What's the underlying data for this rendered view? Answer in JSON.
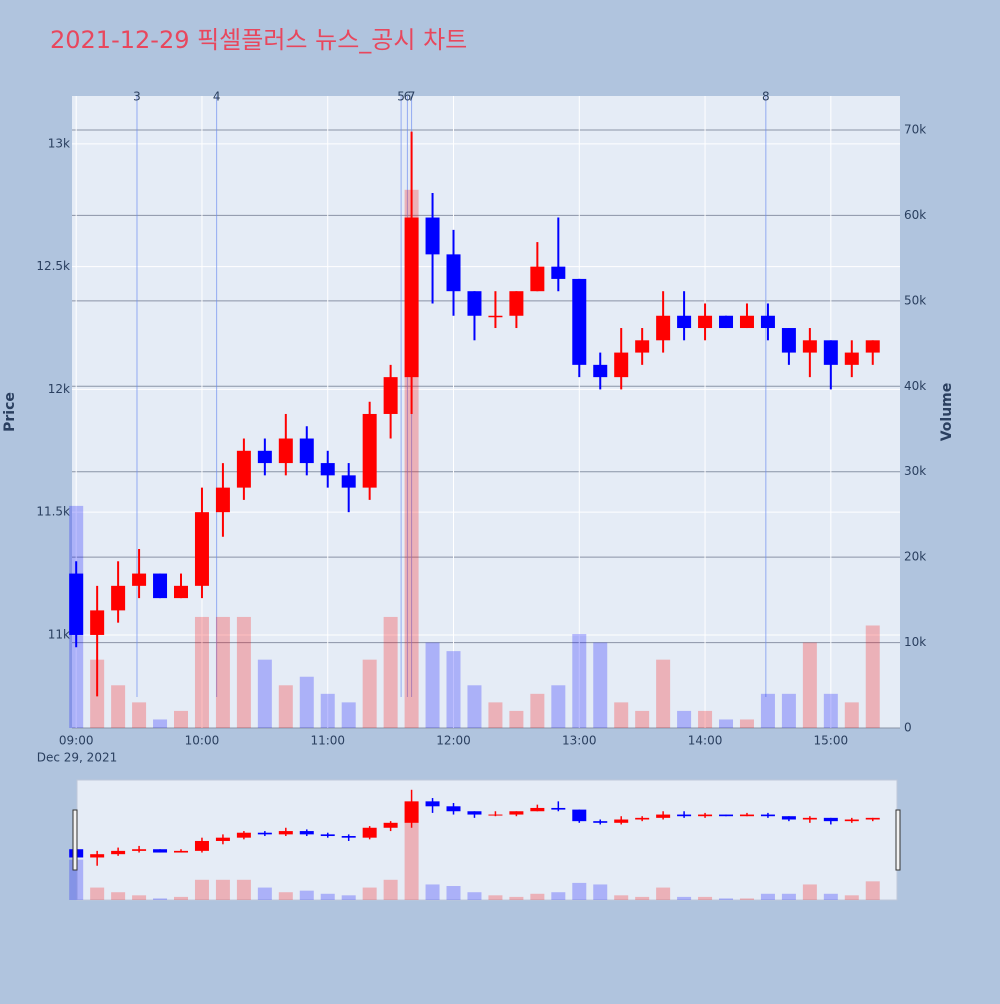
{
  "chart_data": {
    "type": "candlestick",
    "title": "2021-12-29 픽셀플러스 뉴스_공시 차트",
    "x": [
      "09:00",
      "09:10",
      "09:20",
      "09:30",
      "09:40",
      "09:50",
      "10:00",
      "10:10",
      "10:20",
      "10:30",
      "10:40",
      "10:50",
      "11:00",
      "11:10",
      "11:20",
      "11:30",
      "11:40",
      "11:50",
      "12:00",
      "12:10",
      "12:20",
      "12:30",
      "12:40",
      "12:50",
      "13:00",
      "13:10",
      "13:20",
      "13:30",
      "13:40",
      "13:50",
      "14:00",
      "14:10",
      "14:20",
      "14:30",
      "14:40",
      "14:50",
      "15:00",
      "15:10",
      "15:20"
    ],
    "open": [
      11250,
      11000,
      11100,
      11200,
      11250,
      11150,
      11200,
      11500,
      11600,
      11750,
      11700,
      11800,
      11700,
      11650,
      11600,
      11900,
      12050,
      12700,
      12550,
      12400,
      12300,
      12300,
      12400,
      12500,
      12450,
      12100,
      12050,
      12150,
      12200,
      12300,
      12250,
      12300,
      12250,
      12300,
      12250,
      12150,
      12200,
      12100,
      12150
    ],
    "high": [
      11300,
      11200,
      11300,
      11350,
      11250,
      11250,
      11600,
      11700,
      11800,
      11800,
      11900,
      11850,
      11750,
      11700,
      11950,
      12100,
      13050,
      12800,
      12650,
      12400,
      12400,
      12400,
      12600,
      12700,
      12450,
      12150,
      12250,
      12250,
      12400,
      12400,
      12350,
      12300,
      12350,
      12350,
      12250,
      12250,
      12200,
      12200,
      12200
    ],
    "low": [
      10950,
      10750,
      11050,
      11150,
      11150,
      11150,
      11150,
      11400,
      11550,
      11650,
      11650,
      11650,
      11600,
      11500,
      11550,
      11800,
      11900,
      12350,
      12300,
      12200,
      12250,
      12250,
      12400,
      12400,
      12050,
      12000,
      12000,
      12100,
      12150,
      12200,
      12200,
      12250,
      12250,
      12200,
      12100,
      12050,
      12000,
      12050,
      12100
    ],
    "close": [
      11000,
      11100,
      11200,
      11250,
      11150,
      11200,
      11500,
      11600,
      11750,
      11700,
      11800,
      11700,
      11650,
      11600,
      11900,
      12050,
      12700,
      12550,
      12400,
      12300,
      12300,
      12400,
      12500,
      12450,
      12100,
      12050,
      12150,
      12200,
      12300,
      12250,
      12300,
      12250,
      12300,
      12250,
      12150,
      12200,
      12100,
      12150,
      12200
    ],
    "volume": [
      26000,
      8000,
      5000,
      3000,
      1000,
      2000,
      13000,
      13000,
      13000,
      8000,
      5000,
      6000,
      4000,
      3000,
      8000,
      13000,
      63000,
      10000,
      9000,
      5000,
      3000,
      2000,
      4000,
      5000,
      11000,
      10000,
      3000,
      2000,
      8000,
      2000,
      2000,
      1000,
      1000,
      4000,
      4000,
      10000,
      4000,
      3000,
      12000
    ],
    "increasing_color": "#ff0000",
    "decreasing_color": "#0000ff",
    "ylabel": "Price",
    "y2label": "Volume",
    "ylim": [
      10621,
      13195
    ],
    "yticks": [
      {
        "value": 11000,
        "label": "11k"
      },
      {
        "value": 11500,
        "label": "11.5k"
      },
      {
        "value": 12000,
        "label": "12k"
      },
      {
        "value": 12500,
        "label": "12.5k"
      },
      {
        "value": 13000,
        "label": "13k"
      }
    ],
    "y2lim": [
      0,
      73980
    ],
    "y2ticks": [
      0,
      {
        "value": 10000,
        "label": "10k"
      },
      {
        "value": 20000,
        "label": "20k"
      },
      {
        "value": 30000,
        "label": "30k"
      },
      {
        "value": 40000,
        "label": "40k"
      },
      {
        "value": 50000,
        "label": "50k"
      },
      {
        "value": 60000,
        "label": "60k"
      },
      {
        "value": 70000,
        "label": "70k"
      }
    ],
    "xlim": [
      "08:58",
      "15:33"
    ],
    "xticks": [
      "09:00",
      "10:00",
      "11:00",
      "12:00",
      "13:00",
      "14:00",
      "15:00"
    ],
    "xdate": "Dec 29, 2021",
    "annotations": [
      {
        "x": "09:29",
        "text": "3"
      },
      {
        "x": "10:07",
        "text": "4"
      },
      {
        "x": "11:35",
        "text": "5"
      },
      {
        "x": "11:38",
        "text": "6"
      },
      {
        "x": "11:40",
        "text": "7"
      },
      {
        "x": "14:29",
        "text": "8"
      }
    ],
    "rangeslider": true
  }
}
